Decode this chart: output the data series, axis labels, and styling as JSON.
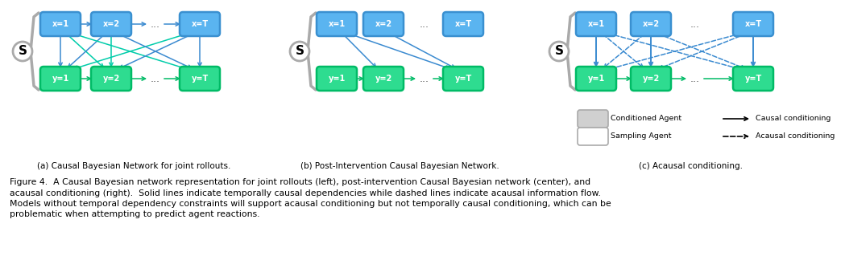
{
  "caption_line1": "Figure 4.  A Causal Bayesian network representation for joint rollouts (left), post-intervention Causal Bayesian network (center), and",
  "caption_line2": "acausal conditioning (right).  Solid lines indicate temporally causal dependencies while dashed lines indicate acausal information flow.",
  "caption_line3": "Models without temporal dependency constraints will support acausal conditioning but not temporally causal conditioning, which can be",
  "caption_line4": "problematic when attempting to predict agent reactions.",
  "sub_a": "(a) Causal Bayesian Network for joint rollouts.",
  "sub_b": "(b) Post-Intervention Causal Bayesian Network.",
  "sub_c": "(c) Acausal conditioning.",
  "blue_box_face": "#5ab4f0",
  "blue_box_edge": "#3a90d0",
  "green_box_face": "#2edc90",
  "green_box_edge": "#00bb66",
  "blue_text_color": "white",
  "green_text_color": "white",
  "arrow_blue": "#3a8ad0",
  "arrow_green": "#00bb66",
  "arrow_cyan": "#00ccaa",
  "S_color": "#aaaaaa",
  "bg_color": "white",
  "legend_cond_face": "#d0d0d0",
  "legend_samp_face": "#ffffff",
  "legend_edge": "#aaaaaa"
}
